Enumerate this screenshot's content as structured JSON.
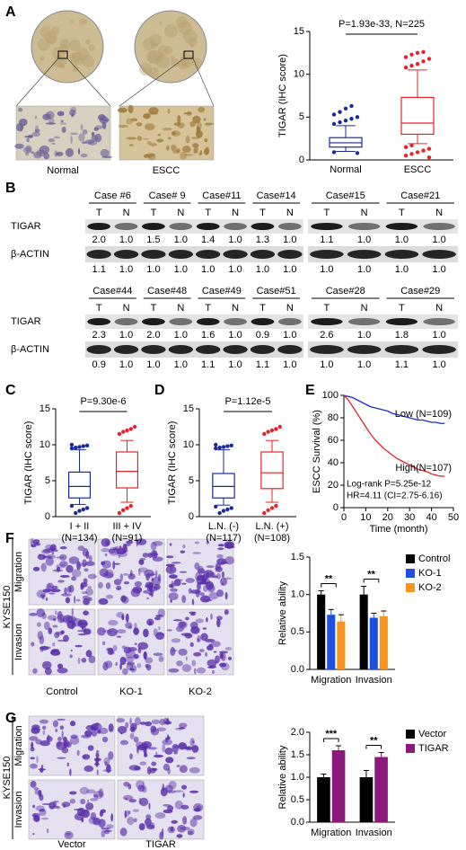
{
  "panel_labels": [
    "A",
    "B",
    "C",
    "D",
    "E",
    "F",
    "G"
  ],
  "micrographs_A": {
    "labels": [
      "Normal",
      "ESCC"
    ]
  },
  "blot_B": {
    "lane_labels": [
      "T",
      "N"
    ],
    "row_labels": [
      "TIGAR",
      "β-ACTIN"
    ],
    "rows": [
      {
        "cases": [
          "Case #6",
          "Case# 9",
          "Case#11",
          "Case#14",
          "Case#15",
          "Case#21"
        ],
        "tigar": [
          "2.0",
          "1.0",
          "1.5",
          "1.0",
          "1.4",
          "1.0",
          "1.3",
          "1.0",
          "1.1",
          "1.0",
          "1.0",
          "1.0"
        ],
        "actin": [
          "1.1",
          "1.0",
          "1.0",
          "1.0",
          "1.0",
          "1.0",
          "1.0",
          "1.0",
          "1.0",
          "1.0",
          "1.0",
          "1.0"
        ]
      },
      {
        "cases": [
          "Case#44",
          "Case#48",
          "Case#49",
          "Case#51",
          "Case#28",
          "Case#29"
        ],
        "tigar": [
          "2.3",
          "1.0",
          "2.0",
          "1.0",
          "1.6",
          "1.0",
          "0.9",
          "1.0",
          "2.6",
          "1.0",
          "1.8",
          "1.0"
        ],
        "actin": [
          "0.9",
          "1.0",
          "1.0",
          "1.0",
          "1.1",
          "1.0",
          "1.1",
          "1.0",
          "1.0",
          "1.0",
          "1.1",
          "1.0"
        ]
      }
    ]
  },
  "micrographs_F": {
    "side_label": "KYSE150",
    "row_labels": [
      "Migration",
      "Invasion"
    ],
    "col_labels": [
      "Control",
      "KO-1",
      "KO-2"
    ]
  },
  "micrographs_G": {
    "side_label": "KYSE150",
    "row_labels": [
      "Migration",
      "Invasion"
    ],
    "col_labels": [
      "Vector",
      "TIGAR"
    ]
  },
  "chart_data": [
    {
      "type": "box",
      "annotation": "P=1.93e-33, N=225",
      "ylabel": "TIGAR (IHC score)",
      "categories": [
        "Normal",
        "ESCC"
      ],
      "colors": [
        "#1a2a9c",
        "#e3242b"
      ],
      "ylim": [
        0,
        15
      ],
      "yticks": [
        0,
        5,
        10,
        15
      ],
      "boxes": [
        {
          "whisker_low": 1.0,
          "q1": 1.5,
          "median": 2.0,
          "q3": 2.6,
          "whisker_high": 4.0,
          "outliers": [
            4.2,
            4.4,
            4.6,
            4.8,
            5.0,
            5.3,
            5.6,
            6.0,
            6.3,
            0.8,
            0.9
          ]
        },
        {
          "whisker_low": 1.9,
          "q1": 3.0,
          "median": 4.3,
          "q3": 7.3,
          "whisker_high": 10.5,
          "outliers": [
            10.8,
            11.0,
            11.2,
            11.5,
            11.8,
            12.0,
            12.3,
            12.5,
            12.6,
            0.3,
            0.5,
            0.7,
            0.9,
            1.1,
            1.3,
            1.5,
            1.7
          ]
        }
      ]
    },
    {
      "type": "box",
      "annotation": "P=9.30e-6",
      "ylabel": "TIGAR (IHC score)",
      "categories": [
        "I + II",
        "III + IV"
      ],
      "category_counts": [
        "(N=134)",
        "(N=91)"
      ],
      "colors": [
        "#1a2a9c",
        "#e3242b"
      ],
      "ylim": [
        0,
        15
      ],
      "yticks": [
        0,
        5,
        10,
        15
      ],
      "boxes": [
        {
          "whisker_low": 1.7,
          "q1": 2.6,
          "median": 4.2,
          "q3": 6.2,
          "whisker_high": 9.3,
          "outliers": [
            9.5,
            9.6,
            9.7,
            9.8,
            9.9,
            10.0,
            0.5,
            0.8,
            1.0,
            1.2,
            1.5
          ]
        },
        {
          "whisker_low": 2.0,
          "q1": 4.0,
          "median": 6.3,
          "q3": 9.0,
          "whisker_high": 10.6,
          "outliers": [
            11.5,
            11.8,
            12.0,
            12.2,
            12.5,
            0.5,
            0.9,
            1.2,
            1.5
          ]
        }
      ]
    },
    {
      "type": "box",
      "annotation": "P=1.12e-5",
      "ylabel": "TIGAR (IHC score)",
      "categories": [
        "L.N. (-)",
        "L.N. (+)"
      ],
      "category_counts": [
        "(N=117)",
        "(N=108)"
      ],
      "colors": [
        "#1a2a9c",
        "#e3242b"
      ],
      "ylim": [
        0,
        15
      ],
      "yticks": [
        0,
        5,
        10,
        15
      ],
      "boxes": [
        {
          "whisker_low": 1.6,
          "q1": 2.6,
          "median": 4.2,
          "q3": 6.0,
          "whisker_high": 9.3,
          "outliers": [
            9.5,
            9.6,
            9.7,
            9.8,
            9.9,
            10.0,
            0.5,
            0.8,
            1.0,
            1.2,
            1.4
          ]
        },
        {
          "whisker_low": 2.0,
          "q1": 3.9,
          "median": 6.1,
          "q3": 9.0,
          "whisker_high": 10.6,
          "outliers": [
            11.5,
            11.8,
            12.0,
            12.2,
            12.5,
            0.5,
            0.9,
            1.2,
            1.5
          ]
        }
      ]
    },
    {
      "type": "line",
      "ylabel": "ESCC Survival (%)",
      "xlabel": "Time (month)",
      "xlim": [
        0,
        50
      ],
      "xticks": [
        0,
        10,
        20,
        30,
        40,
        50
      ],
      "ylim": [
        0,
        100
      ],
      "yticks": [
        0,
        20,
        40,
        60,
        80,
        100
      ],
      "annotations": [
        "Log-rank P=5.25e-12",
        "HR=4.11 (CI=2.75-6.16)"
      ],
      "x": [
        0,
        2,
        4,
        6,
        8,
        10,
        12,
        14,
        16,
        18,
        20,
        22,
        24,
        26,
        28,
        30,
        32,
        34,
        36,
        38,
        40,
        42,
        44,
        46
      ],
      "series": [
        {
          "name": "Low (N=109)",
          "color": "#1a2ad0",
          "values": [
            100,
            99,
            98,
            96,
            94,
            92,
            90,
            89,
            88,
            87,
            86,
            84,
            83,
            82,
            81,
            80,
            79,
            78,
            78,
            77,
            76,
            76,
            75,
            75
          ]
        },
        {
          "name": "High(N=107)",
          "color": "#e3242b",
          "values": [
            100,
            96,
            90,
            84,
            78,
            72,
            66,
            61,
            57,
            53,
            50,
            47,
            44,
            42,
            40,
            38,
            36,
            34,
            33,
            32,
            30,
            29,
            28,
            28
          ]
        }
      ]
    },
    {
      "type": "bar",
      "ylabel": "Relative ability",
      "categories": [
        "Migration",
        "Invasion"
      ],
      "ylim": [
        0,
        1.5
      ],
      "yticks": [
        {
          "value": 0,
          "label": "0.0"
        },
        {
          "value": 0.5,
          "label": "0.5"
        },
        {
          "value": 1,
          "label": "1.0"
        },
        {
          "value": 1.5,
          "label": "1.5"
        }
      ],
      "significance": [
        "**",
        "**"
      ],
      "series": [
        {
          "name": "Control",
          "color": "#000000",
          "values": [
            1.0,
            1.0
          ],
          "errors": [
            0.05,
            0.11
          ]
        },
        {
          "name": "KO-1",
          "color": "#1f4fe0",
          "values": [
            0.73,
            0.69
          ],
          "errors": [
            0.07,
            0.06
          ]
        },
        {
          "name": "KO-2",
          "color": "#f7941d",
          "values": [
            0.64,
            0.71
          ],
          "errors": [
            0.09,
            0.07
          ]
        }
      ]
    },
    {
      "type": "bar",
      "ylabel": "Relative ability",
      "categories": [
        "Migration",
        "Invasion"
      ],
      "ylim": [
        0,
        2
      ],
      "yticks": [
        {
          "value": 0,
          "label": "0.0"
        },
        {
          "value": 0.5,
          "label": "0.5"
        },
        {
          "value": 1,
          "label": "1.0"
        },
        {
          "value": 1.5,
          "label": "1.5"
        },
        {
          "value": 2,
          "label": "2.0"
        }
      ],
      "significance": [
        "***",
        "**"
      ],
      "series": [
        {
          "name": "Vector",
          "color": "#000000",
          "values": [
            1.0,
            1.0
          ],
          "errors": [
            0.07,
            0.15
          ]
        },
        {
          "name": "TIGAR",
          "color": "#8b1a7c",
          "values": [
            1.6,
            1.45
          ],
          "errors": [
            0.1,
            0.1
          ]
        }
      ]
    }
  ]
}
